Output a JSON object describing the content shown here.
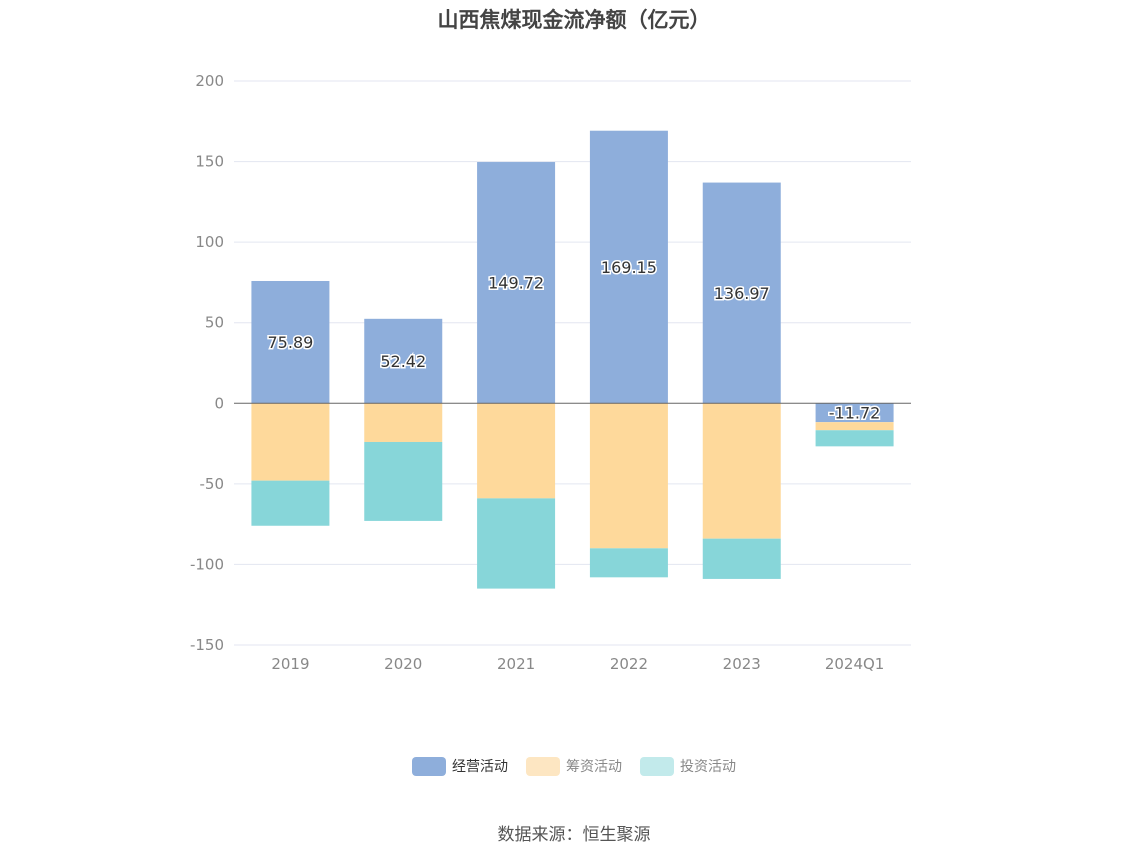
{
  "chart_data": {
    "type": "bar",
    "stacked": true,
    "title": "山西焦煤现金流净额（亿元）",
    "categories": [
      "2019",
      "2020",
      "2021",
      "2022",
      "2023",
      "2024Q1"
    ],
    "ylim": [
      -150,
      200
    ],
    "yticks": [
      200,
      150,
      100,
      50,
      0,
      -50,
      -100,
      -150
    ],
    "grid": true,
    "legend_position": "bottom",
    "series": [
      {
        "name": "经营活动",
        "color": "#8eaedb",
        "values": [
          75.89,
          52.42,
          149.72,
          169.15,
          136.97,
          -11.72
        ],
        "labels": [
          "75.89",
          "52.42",
          "149.72",
          "169.15",
          "136.97",
          "-11.72"
        ]
      },
      {
        "name": "筹资活动",
        "color": "#fed99b",
        "values": [
          -48,
          -24,
          -59,
          -90,
          -84,
          -5
        ]
      },
      {
        "name": "投资活动",
        "color": "#87d6d9",
        "values": [
          -28,
          -49,
          -56,
          -18,
          -25,
          -10
        ]
      }
    ],
    "legend_colors": [
      "#8eaedb",
      "#fde6c2",
      "#c2eaeb"
    ],
    "source": "数据来源：恒生聚源"
  }
}
